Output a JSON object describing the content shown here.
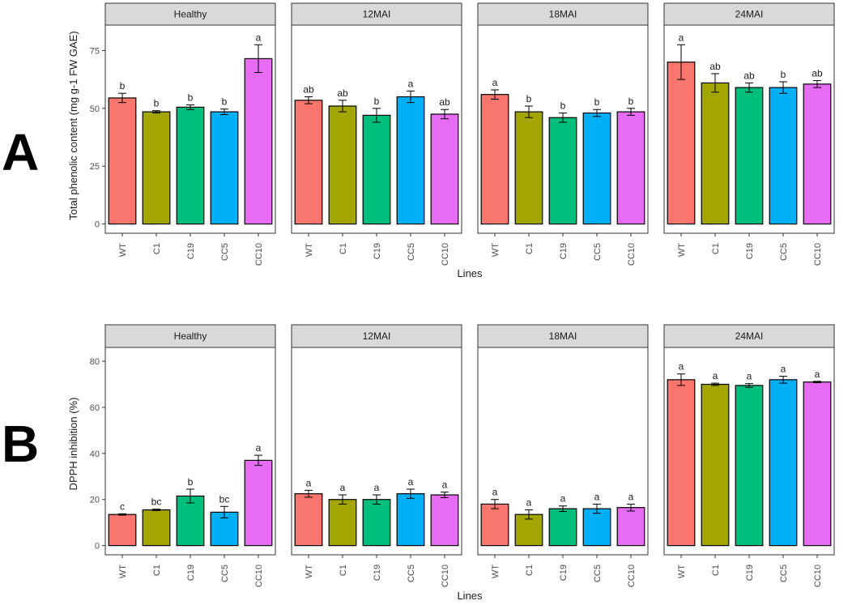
{
  "colors": {
    "WT": "#F8766D",
    "C1": "#A3A500",
    "C19": "#00BF7D",
    "CC5": "#00B0F6",
    "CC10": "#E76BF3",
    "strip_bg": "#D9D9D9",
    "border": "#333333"
  },
  "chart_data": [
    {
      "panel_label": "A",
      "type": "bar",
      "ylabel": "Total phenolic content (mg g-1 FW GAE)",
      "xlabel": "Lines",
      "categories": [
        "WT",
        "C1",
        "C19",
        "CC5",
        "CC10"
      ],
      "ylim": [
        -4,
        86
      ],
      "yticks": [
        0,
        25,
        50,
        75
      ],
      "facets": [
        {
          "name": "Healthy",
          "values": [
            54.5,
            48.5,
            50.5,
            48.5,
            71.5
          ],
          "errors": [
            2,
            0.5,
            1,
            1.2,
            6
          ],
          "letters": [
            "b",
            "b",
            "b",
            "b",
            "a"
          ]
        },
        {
          "name": "12MAI",
          "values": [
            53.5,
            51,
            47,
            55,
            47.5
          ],
          "errors": [
            1.5,
            2.5,
            3,
            2.5,
            2
          ],
          "letters": [
            "ab",
            "ab",
            "b",
            "a",
            "ab"
          ]
        },
        {
          "name": "18MAI",
          "values": [
            56,
            48.5,
            46,
            48,
            48.5
          ],
          "errors": [
            2,
            2.5,
            2,
            1.5,
            1.5
          ],
          "letters": [
            "a",
            "b",
            "b",
            "b",
            "b"
          ]
        },
        {
          "name": "24MAI",
          "values": [
            70,
            61,
            59,
            59,
            60.5
          ],
          "errors": [
            7.5,
            4,
            2,
            2.5,
            1.5
          ],
          "letters": [
            "a",
            "ab",
            "ab",
            "b",
            "ab"
          ]
        }
      ]
    },
    {
      "panel_label": "B",
      "type": "bar",
      "ylabel": "DPPH inhibition (%)",
      "xlabel": "Lines",
      "categories": [
        "WT",
        "C1",
        "C19",
        "CC5",
        "CC10"
      ],
      "ylim": [
        -4,
        86
      ],
      "yticks": [
        0,
        20,
        40,
        60,
        80
      ],
      "facets": [
        {
          "name": "Healthy",
          "values": [
            13.5,
            15.5,
            21.5,
            14.5,
            37
          ],
          "errors": [
            0.3,
            0.3,
            3,
            2.5,
            2.2
          ],
          "letters": [
            "c",
            "bc",
            "b",
            "bc",
            "a"
          ]
        },
        {
          "name": "12MAI",
          "values": [
            22.5,
            20,
            20,
            22.5,
            22
          ],
          "errors": [
            1.5,
            2,
            2,
            2,
            1.2
          ],
          "letters": [
            "a",
            "a",
            "a",
            "a",
            "a"
          ]
        },
        {
          "name": "18MAI",
          "values": [
            18,
            13.5,
            16,
            16,
            16.5
          ],
          "errors": [
            2,
            2,
            1.2,
            2,
            1.5
          ],
          "letters": [
            "a",
            "a",
            "a",
            "a",
            "a"
          ]
        },
        {
          "name": "24MAI",
          "values": [
            72,
            70,
            69.5,
            72,
            71
          ],
          "errors": [
            2.5,
            0.5,
            0.8,
            1.5,
            0.3
          ],
          "letters": [
            "a",
            "a",
            "a",
            "a",
            "a"
          ]
        }
      ]
    }
  ]
}
